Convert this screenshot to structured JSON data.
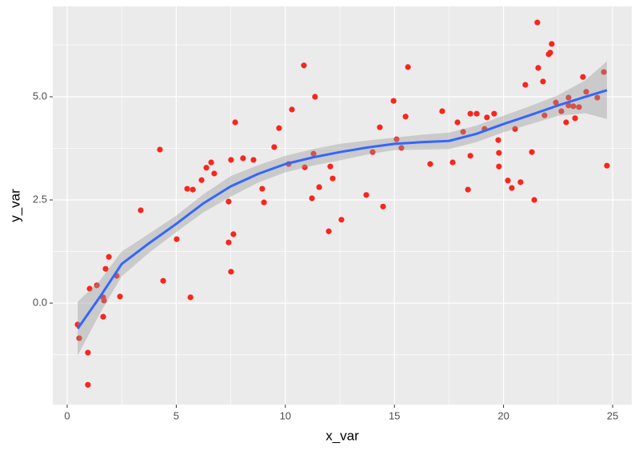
{
  "chart_data": {
    "type": "scatter",
    "x_label": "x_var",
    "y_label": "y_var",
    "xlim": [
      -0.66,
      25.88
    ],
    "ylim": [
      -2.46,
      7.19
    ],
    "xticks": [
      0,
      5,
      10,
      15,
      20,
      25
    ],
    "yticks": [
      {
        "value": 0,
        "label": "0.0"
      },
      {
        "value": 2.5,
        "label": "2.5"
      },
      {
        "value": 5,
        "label": "5.0"
      }
    ],
    "xminor": [
      2.5,
      7.5,
      12.5,
      17.5,
      22.5
    ],
    "yminor": [
      -1.25,
      1.25,
      3.75,
      6.25
    ],
    "grid": true,
    "point_color": "#f8261d",
    "x": [
      0.48,
      0.55,
      0.95,
      0.95,
      1.03,
      1.36,
      1.65,
      1.65,
      1.69,
      1.76,
      1.91,
      2.27,
      2.42,
      3.37,
      4.25,
      4.4,
      5.02,
      5.5,
      5.65,
      5.76,
      6.16,
      6.38,
      6.6,
      6.74,
      7.4,
      7.4,
      7.51,
      7.51,
      7.62,
      7.7,
      8.06,
      8.54,
      8.94,
      9.02,
      9.49,
      9.71,
      10.15,
      10.3,
      10.85,
      10.89,
      11.22,
      11.29,
      11.36,
      11.55,
      11.99,
      12.06,
      12.17,
      12.57,
      13.71,
      14.0,
      14.33,
      14.48,
      14.96,
      15.1,
      15.32,
      15.51,
      15.62,
      16.64,
      17.19,
      17.67,
      17.89,
      18.15,
      18.37,
      18.48,
      18.48,
      18.77,
      19.13,
      19.24,
      19.57,
      19.76,
      19.79,
      19.79,
      20.2,
      20.38,
      20.53,
      20.78,
      21.0,
      21.3,
      21.41,
      21.55,
      21.59,
      21.81,
      21.88,
      22.07,
      22.14,
      22.21,
      22.4,
      22.65,
      22.87,
      22.98,
      22.98,
      23.2,
      23.28,
      23.46,
      23.64,
      23.79,
      24.3,
      24.6,
      24.74
    ],
    "values": [
      -0.52,
      -0.85,
      -1.98,
      -1.2,
      0.35,
      0.43,
      0.14,
      -0.33,
      0.06,
      0.83,
      1.12,
      0.66,
      0.16,
      2.25,
      3.72,
      0.54,
      1.55,
      2.77,
      0.14,
      2.75,
      2.98,
      3.28,
      3.41,
      3.14,
      2.46,
      1.47,
      3.47,
      0.76,
      1.67,
      4.38,
      3.51,
      3.47,
      2.77,
      2.44,
      3.78,
      4.24,
      3.37,
      4.69,
      5.76,
      3.29,
      2.54,
      3.62,
      5.0,
      2.81,
      1.74,
      3.31,
      3.02,
      2.02,
      2.62,
      3.66,
      4.26,
      2.34,
      4.9,
      3.97,
      3.76,
      4.52,
      5.72,
      3.37,
      4.65,
      3.41,
      4.38,
      4.15,
      2.75,
      3.57,
      4.59,
      4.59,
      4.22,
      4.5,
      4.59,
      3.95,
      3.64,
      3.31,
      2.97,
      2.79,
      4.22,
      2.93,
      5.29,
      3.66,
      2.5,
      6.8,
      5.7,
      5.37,
      4.55,
      6.03,
      6.07,
      6.28,
      4.86,
      4.65,
      4.38,
      4.98,
      4.79,
      4.77,
      4.48,
      4.75,
      5.48,
      5.12,
      4.98,
      5.6,
      3.33
    ],
    "smooth": {
      "color": "#3366ff",
      "band_color": "#999999",
      "x": [
        0.48,
        1.5,
        2.5,
        3.75,
        5,
        6.25,
        7.5,
        8.75,
        10,
        11.25,
        12.5,
        13.75,
        15,
        16.25,
        17.5,
        18.75,
        20,
        21.25,
        22.5,
        23.75,
        24.74
      ],
      "y": [
        -0.62,
        0.15,
        0.95,
        1.45,
        1.92,
        2.42,
        2.83,
        3.13,
        3.37,
        3.53,
        3.66,
        3.77,
        3.86,
        3.9,
        3.93,
        4.1,
        4.34,
        4.56,
        4.79,
        5.0,
        5.16
      ],
      "lower": [
        -1.27,
        -0.25,
        0.65,
        1.22,
        1.72,
        2.2,
        2.58,
        2.92,
        3.17,
        3.33,
        3.46,
        3.6,
        3.71,
        3.72,
        3.73,
        3.9,
        4.14,
        4.34,
        4.54,
        4.6,
        4.46
      ],
      "upper": [
        0.03,
        0.55,
        1.25,
        1.68,
        2.12,
        2.64,
        3.08,
        3.34,
        3.57,
        3.73,
        3.86,
        3.94,
        4.01,
        4.08,
        4.13,
        4.3,
        4.54,
        4.78,
        5.04,
        5.4,
        5.86
      ]
    }
  }
}
